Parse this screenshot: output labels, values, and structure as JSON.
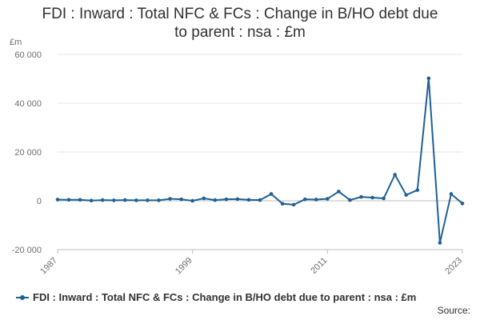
{
  "chart_data": {
    "type": "line",
    "title_line1": "FDI : Inward : Total NFC & FCs : Change in B/HO debt due",
    "title_line2": "to parent : nsa : £m",
    "ylabel": "£m",
    "ylim": [
      -20000,
      60000
    ],
    "yticks": [
      -20000,
      0,
      20000,
      40000,
      60000
    ],
    "ytick_labels": [
      "-20 000",
      "0",
      "20 000",
      "40 000",
      "60 000"
    ],
    "xlim": [
      1987,
      2023
    ],
    "xticks": [
      1987,
      1999,
      2011,
      2023
    ],
    "xtick_labels": [
      "1987",
      "1999",
      "2011",
      "2023"
    ],
    "grid": true,
    "legend_position": "bottom-left",
    "color": "#206095",
    "series": [
      {
        "name": "FDI : Inward : Total NFC & FCs : Change in B/HO debt due to parent : nsa : £m",
        "x": [
          1987,
          1988,
          1989,
          1990,
          1991,
          1992,
          1993,
          1994,
          1995,
          1996,
          1997,
          1998,
          1999,
          2000,
          2001,
          2002,
          2003,
          2004,
          2005,
          2006,
          2007,
          2008,
          2009,
          2010,
          2011,
          2012,
          2013,
          2014,
          2015,
          2016,
          2017,
          2018,
          2019,
          2020,
          2021,
          2022,
          2023
        ],
        "values": [
          500,
          400,
          400,
          100,
          300,
          200,
          300,
          200,
          200,
          200,
          800,
          600,
          0,
          1000,
          300,
          600,
          700,
          400,
          300,
          2800,
          -1200,
          -1600,
          600,
          500,
          800,
          3800,
          300,
          1600,
          1300,
          1000,
          10700,
          2400,
          4400,
          50200,
          -17200,
          2800,
          -1100
        ]
      }
    ]
  },
  "source_label": "Source:"
}
